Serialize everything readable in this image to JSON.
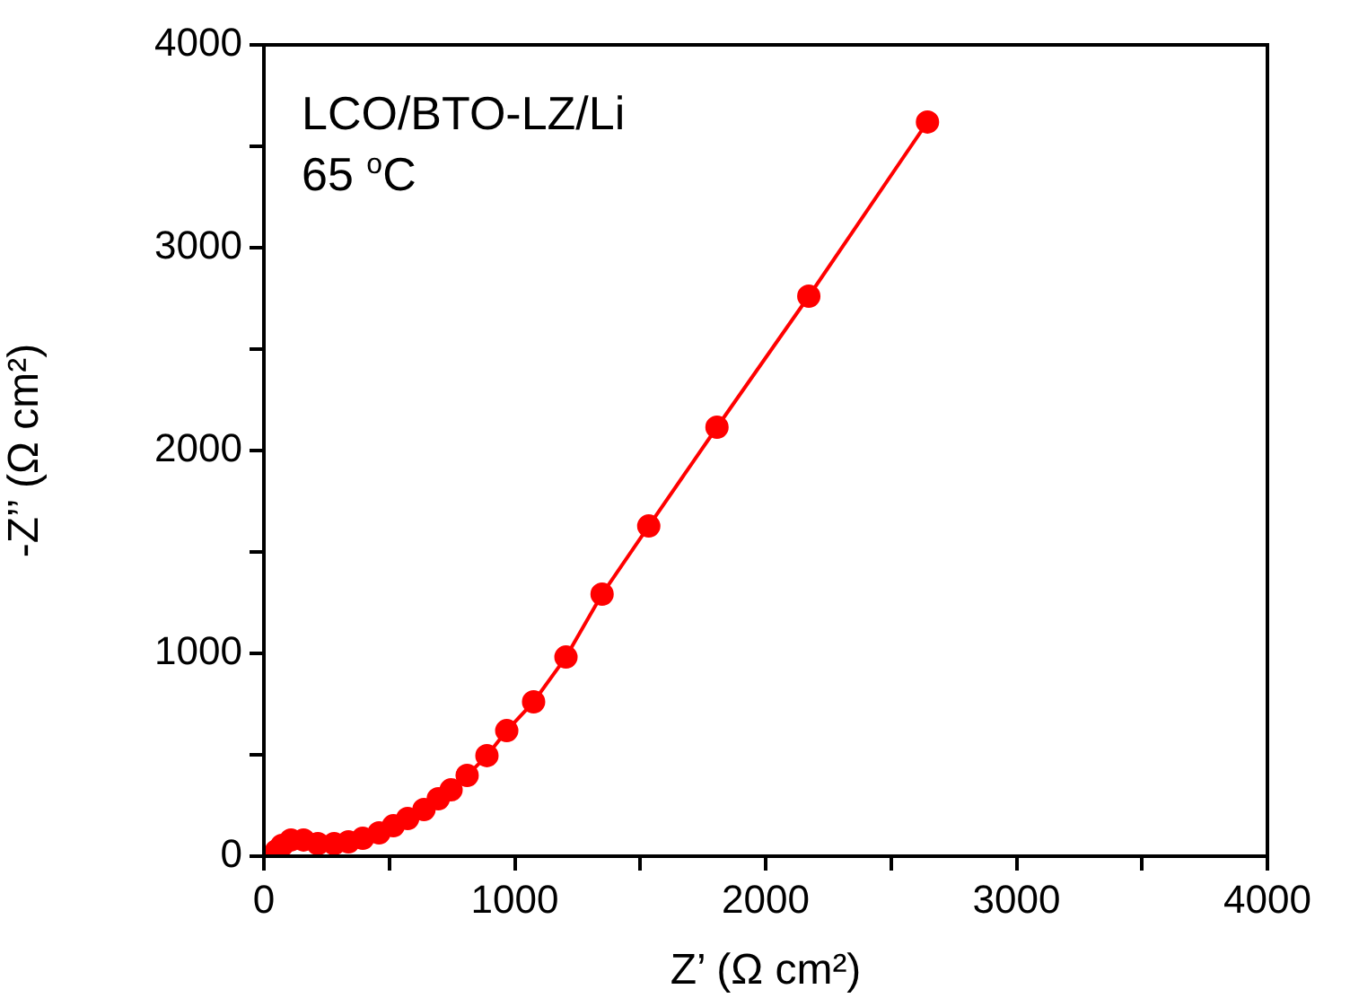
{
  "chart_data": {
    "type": "line",
    "xlabel": "Z’ (Ω cm²)",
    "ylabel": "-Z’’ (Ω cm²)",
    "annotations": [
      "LCO/BTO-LZ/Li",
      "65 $^{o}$C"
    ],
    "marker": "circle",
    "line_style": "solid",
    "legend": false,
    "grid": false,
    "xlim": [
      0,
      4000
    ],
    "ylim": [
      0,
      4000
    ],
    "xticks": [
      0,
      {
        "value": 500,
        "label": null
      },
      1000,
      {
        "value": 1500,
        "label": null
      },
      2000,
      {
        "value": 2500,
        "label": null
      },
      3000,
      {
        "value": 3500,
        "label": null
      },
      4000
    ],
    "yticks": [
      0,
      {
        "value": 500,
        "label": null
      },
      1000,
      {
        "value": 1500,
        "label": null
      },
      2000,
      {
        "value": 2500,
        "label": null
      },
      3000,
      {
        "value": 3500,
        "label": null
      },
      4000
    ],
    "series": [
      {
        "color": "#ff0000",
        "x": [
          50,
          72,
          108,
          158,
          215,
          280,
          337,
          394,
          459,
          516,
          573,
          638,
          695,
          746,
          810,
          889,
          968,
          1075,
          1204,
          1348,
          1534,
          1806,
          2172,
          2645
        ],
        "values": [
          27,
          53,
          80,
          80,
          62,
          62,
          71,
          88,
          115,
          150,
          186,
          230,
          283,
          327,
          398,
          496,
          619,
          761,
          982,
          1292,
          1628,
          2115,
          2761,
          3620
        ]
      }
    ]
  }
}
